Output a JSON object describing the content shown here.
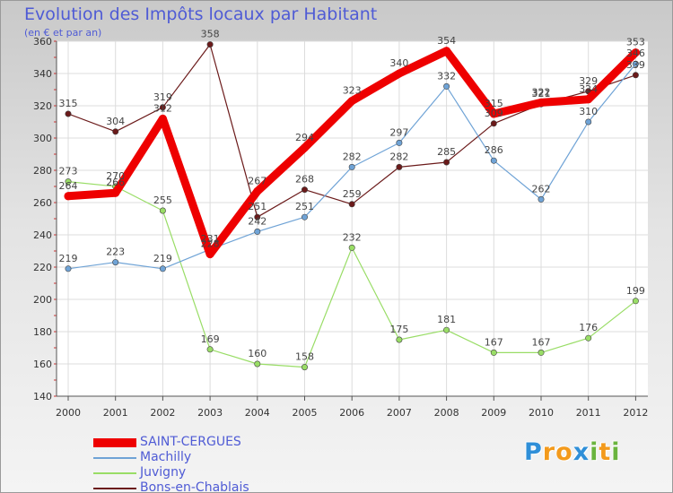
{
  "title": "Evolution des Impôts locaux par Habitant",
  "subtitle": "(en € et par an)",
  "brand": {
    "letters": [
      "P",
      "r",
      "o",
      "x",
      "i",
      "t",
      "i"
    ],
    "colors": [
      "#2f8fd8",
      "#f39a1c",
      "#f39a1c",
      "#2f8fd8",
      "#6ab43e",
      "#f39a1c",
      "#6ab43e"
    ]
  },
  "chart_data": {
    "type": "line",
    "title": "Evolution des Impôts locaux par Habitant",
    "ylabel": "(en € et par an)",
    "xlabel": "",
    "x": [
      "2000",
      "2001",
      "2002",
      "2003",
      "2004",
      "2005",
      "2006",
      "2007",
      "2008",
      "2009",
      "2010",
      "2011",
      "2012"
    ],
    "ylim": [
      140,
      360
    ],
    "yticks": [
      "140",
      "160",
      "180",
      "200",
      "220",
      "240",
      "260",
      "280",
      "300",
      "320",
      "340",
      "360"
    ],
    "grid": true,
    "legend_position": "bottom-left",
    "series": [
      {
        "name": "Bons-en-Chablais",
        "color": "#6b1a1a",
        "values": [
          315,
          304,
          319,
          358,
          251,
          268,
          259,
          282,
          285,
          309,
          321,
          329,
          339
        ],
        "labels": [
          "315",
          "304",
          "319",
          "358",
          "251",
          "268",
          "259",
          "282",
          "285",
          "309",
          "321",
          "329",
          "339"
        ]
      },
      {
        "name": "Juvigny",
        "color": "#99dd66",
        "values": [
          273,
          270,
          255,
          169,
          160,
          158,
          232,
          175,
          181,
          167,
          167,
          176,
          199
        ],
        "labels": [
          "273",
          "270",
          "255",
          "169",
          "160",
          "158",
          "232",
          "175",
          "181",
          "167",
          "167",
          "176",
          "199"
        ]
      },
      {
        "name": "Machilly",
        "color": "#6fa3d6",
        "values": [
          219,
          223,
          219,
          231,
          242,
          251,
          282,
          297,
          332,
          286,
          262,
          310,
          346
        ],
        "labels": [
          "219",
          "223",
          "219",
          "231",
          "242",
          "251",
          "282",
          "297",
          "332",
          "286",
          "262",
          "310",
          "346"
        ]
      },
      {
        "name": "SAINT-CERGUES",
        "color": "#ee0000",
        "values": [
          264,
          266,
          312,
          228,
          267,
          294,
          323,
          340,
          354,
          315,
          322,
          324,
          353
        ],
        "labels": [
          "264",
          "266",
          "312",
          "228",
          "267",
          "294",
          "323",
          "340",
          "354",
          "315",
          "322",
          "324",
          "353"
        ]
      }
    ],
    "legend": [
      "SAINT-CERGUES",
      "Machilly",
      "Juvigny",
      "Bons-en-Chablais"
    ]
  }
}
